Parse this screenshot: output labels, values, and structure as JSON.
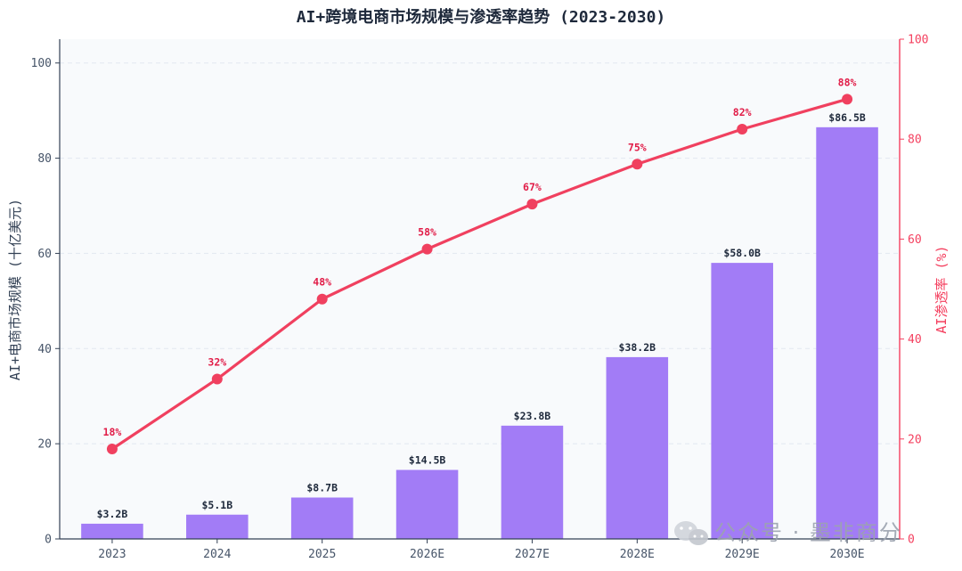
{
  "chart_data": {
    "type": "bar",
    "title": "AI+跨境电商市场规模与渗透率趋势 (2023-2030)",
    "categories": [
      "2023",
      "2024",
      "2025",
      "2026E",
      "2027E",
      "2028E",
      "2029E",
      "2030E"
    ],
    "ylabel": "AI+电商市场规模 (十亿美元)",
    "ylim": [
      0,
      105
    ],
    "y_ticks": [
      "0",
      "20",
      "40",
      "60",
      "80",
      "100"
    ],
    "ylabel_right": "AI渗透率 (%)",
    "ylim_right": [
      0,
      100
    ],
    "y_ticks_right": [
      "0",
      "20",
      "40",
      "60",
      "80",
      "100"
    ],
    "grid": true,
    "series": [
      {
        "type": "bar",
        "axis": "left",
        "values": [
          3.2,
          5.1,
          8.7,
          14.5,
          23.8,
          38.2,
          58.0,
          86.5
        ],
        "labels": [
          "$3.2B",
          "$5.1B",
          "$8.7B",
          "$14.5B",
          "$23.8B",
          "$38.2B",
          "$58.0B",
          "$86.5B"
        ],
        "color": "#a27cf6"
      },
      {
        "type": "line",
        "axis": "right",
        "values": [
          18,
          32,
          48,
          58,
          67,
          75,
          82,
          88
        ],
        "labels": [
          "18%",
          "32%",
          "48%",
          "58%",
          "67%",
          "75%",
          "82%",
          "88%"
        ],
        "color": "#f0405f"
      }
    ]
  },
  "watermark": {
    "text": "公众号 · 墨非商分",
    "icon": "wechat-icon"
  }
}
